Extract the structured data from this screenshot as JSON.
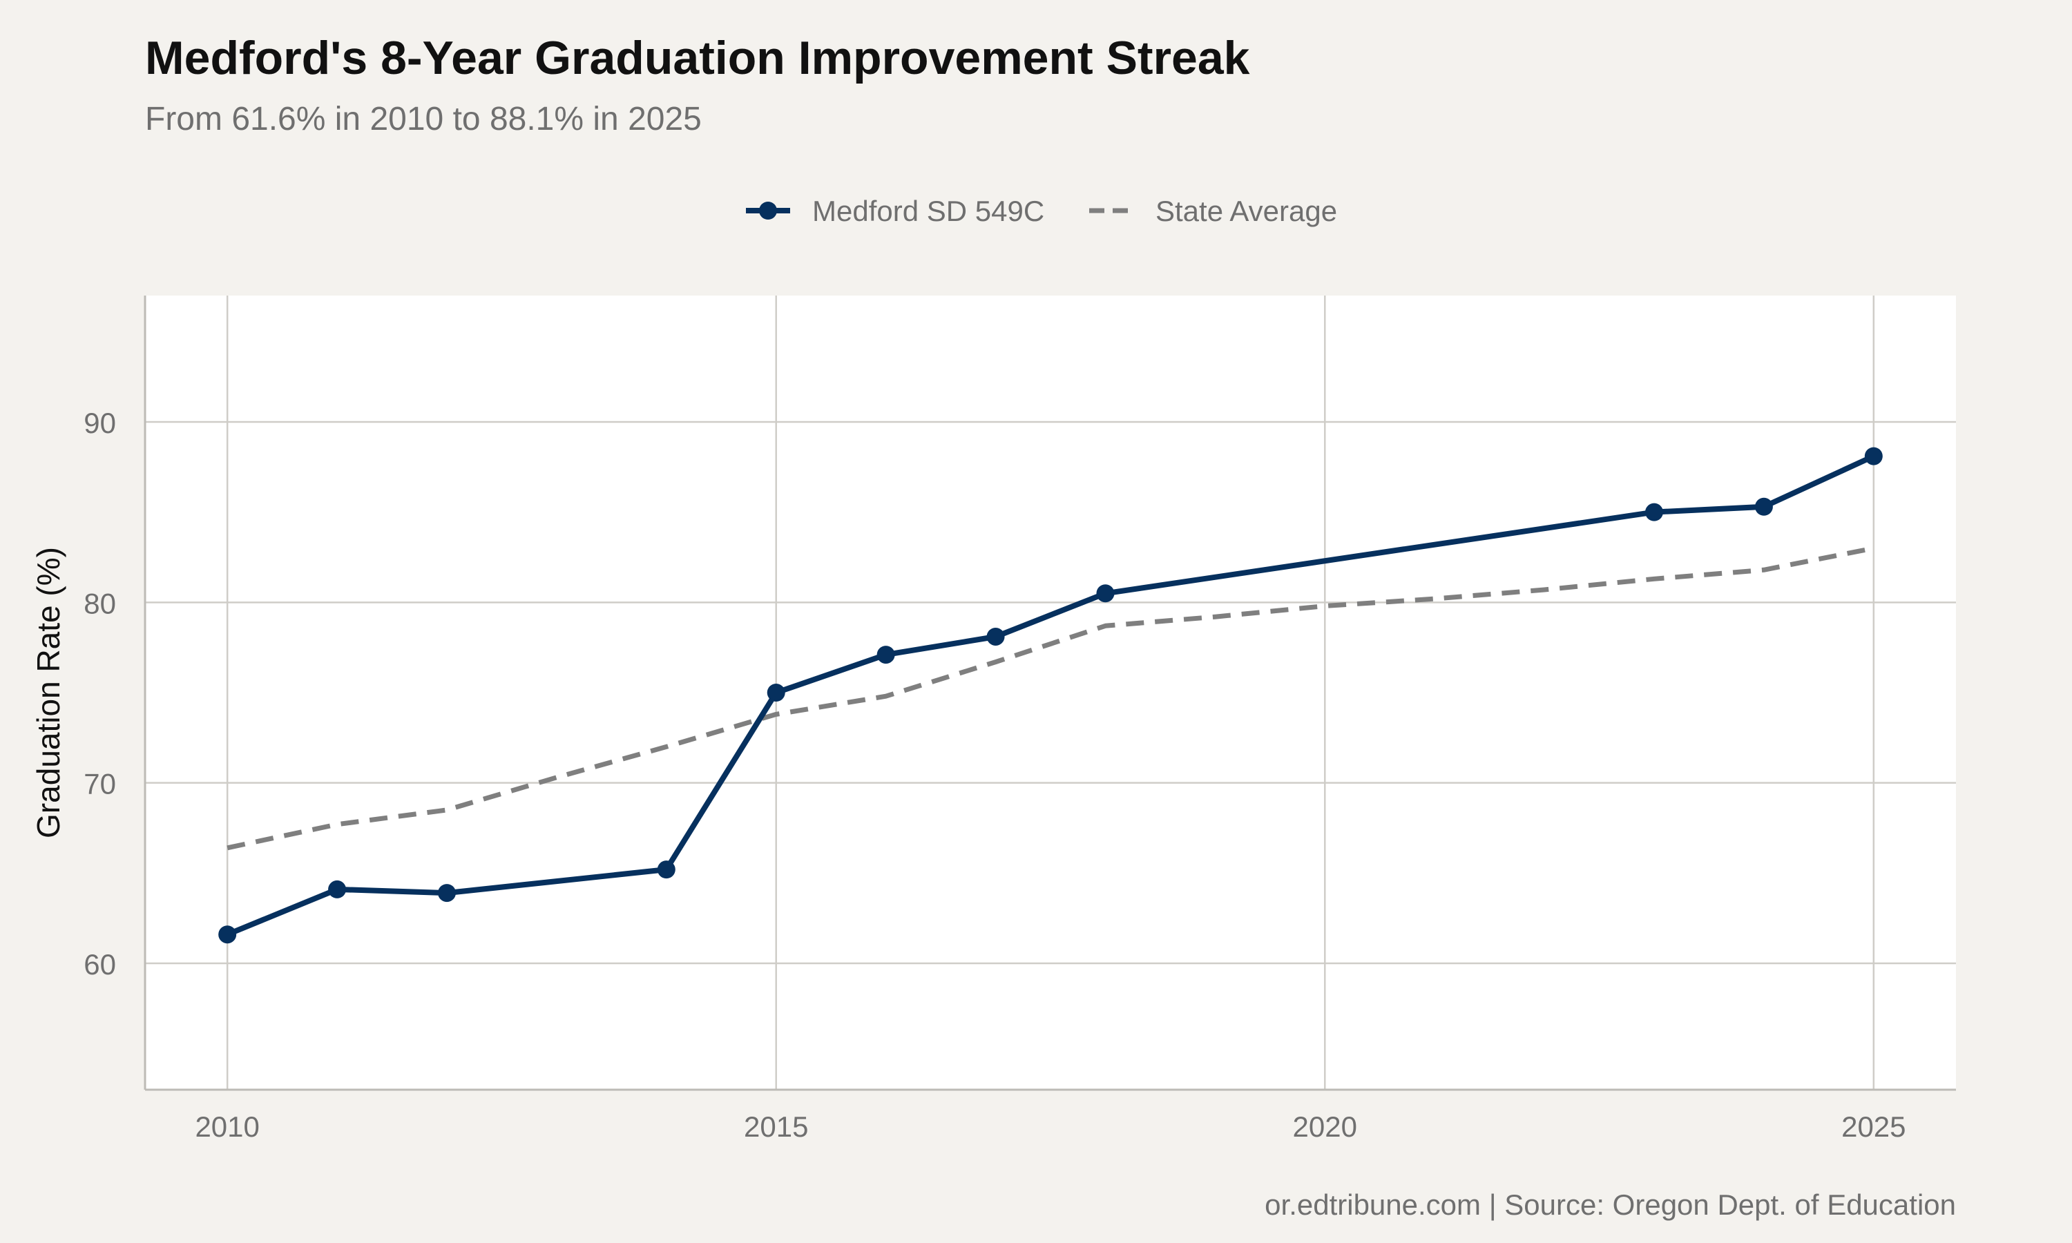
{
  "chart_data": {
    "type": "line",
    "title": "Medford's 8-Year Graduation Improvement Streak",
    "subtitle": "From 61.6% in 2010 to 88.1% in 2025",
    "caption": "or.edtribune.com | Source: Oregon Dept. of Education",
    "xlabel": "",
    "ylabel": "Graduation Rate (%)",
    "xlim": [
      2009.25,
      2025.75
    ],
    "ylim": [
      53,
      97
    ],
    "x_ticks": [
      2010,
      2015,
      2020,
      2025
    ],
    "y_ticks": [
      60,
      70,
      80,
      90
    ],
    "grid": true,
    "legend_position": "top",
    "series": [
      {
        "name": "Medford SD 549C",
        "color": "#06305e",
        "style": "solid-with-points",
        "points": [
          {
            "x": 2010,
            "y": 61.6
          },
          {
            "x": 2011,
            "y": 64.1
          },
          {
            "x": 2012,
            "y": 63.9
          },
          {
            "x": 2014,
            "y": 65.2
          },
          {
            "x": 2015,
            "y": 75.0
          },
          {
            "x": 2016,
            "y": 77.1
          },
          {
            "x": 2017,
            "y": 78.1
          },
          {
            "x": 2018,
            "y": 80.5
          },
          {
            "x": 2023,
            "y": 85.0
          },
          {
            "x": 2024,
            "y": 85.3
          },
          {
            "x": 2025,
            "y": 88.1
          }
        ]
      },
      {
        "name": "State Average",
        "color": "#7f7f7f",
        "style": "dashed",
        "points": [
          {
            "x": 2010,
            "y": 66.4
          },
          {
            "x": 2011,
            "y": 67.7
          },
          {
            "x": 2012,
            "y": 68.5
          },
          {
            "x": 2013,
            "y": 70.3
          },
          {
            "x": 2014,
            "y": 72.0
          },
          {
            "x": 2015,
            "y": 73.8
          },
          {
            "x": 2016,
            "y": 74.8
          },
          {
            "x": 2017,
            "y": 76.7
          },
          {
            "x": 2018,
            "y": 78.7
          },
          {
            "x": 2019,
            "y": 79.2
          },
          {
            "x": 2020,
            "y": 79.8
          },
          {
            "x": 2021,
            "y": 80.2
          },
          {
            "x": 2022,
            "y": 80.7
          },
          {
            "x": 2023,
            "y": 81.3
          },
          {
            "x": 2024,
            "y": 81.8
          },
          {
            "x": 2025,
            "y": 83.0
          }
        ]
      }
    ]
  }
}
